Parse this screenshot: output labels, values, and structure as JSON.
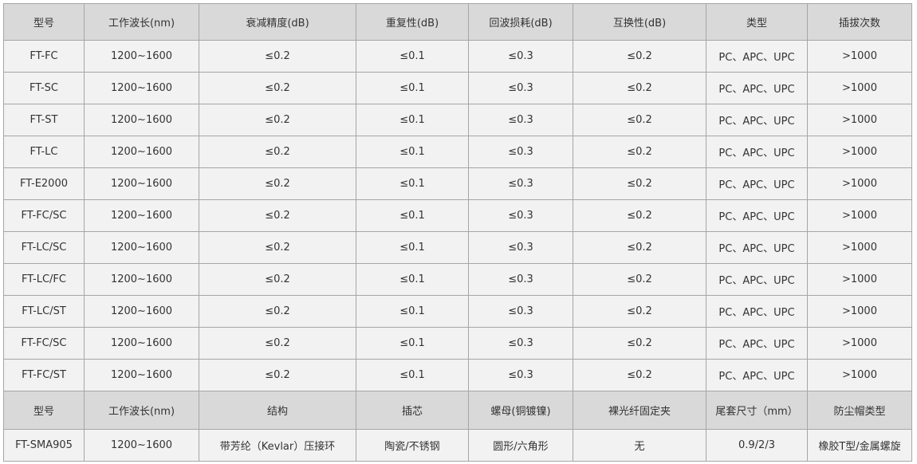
{
  "table": {
    "header": [
      "型号",
      "工作波长(nm)",
      "衰减精度(dB)",
      "重复性(dB)",
      "回波损耗(dB)",
      "互换性(dB)",
      "类型",
      "插拔次数"
    ],
    "rows": [
      [
        "FT-FC",
        "1200~1600",
        "≤0.2",
        "≤0.1",
        "≤0.3",
        "≤0.2",
        "PC、APC、UPC",
        ">1000"
      ],
      [
        "FT-SC",
        "1200~1600",
        "≤0.2",
        "≤0.1",
        "≤0.3",
        "≤0.2",
        "PC、APC、UPC",
        ">1000"
      ],
      [
        "FT-ST",
        "1200~1600",
        "≤0.2",
        "≤0.1",
        "≤0.3",
        "≤0.2",
        "PC、APC、UPC",
        ">1000"
      ],
      [
        "FT-LC",
        "1200~1600",
        "≤0.2",
        "≤0.1",
        "≤0.3",
        "≤0.2",
        "PC、APC、UPC",
        ">1000"
      ],
      [
        "FT-E2000",
        "1200~1600",
        "≤0.2",
        "≤0.1",
        "≤0.3",
        "≤0.2",
        "PC、APC、UPC",
        ">1000"
      ],
      [
        "FT-FC/SC",
        "1200~1600",
        "≤0.2",
        "≤0.1",
        "≤0.3",
        "≤0.2",
        "PC、APC、UPC",
        ">1000"
      ],
      [
        "FT-LC/SC",
        "1200~1600",
        "≤0.2",
        "≤0.1",
        "≤0.3",
        "≤0.2",
        "PC、APC、UPC",
        ">1000"
      ],
      [
        "FT-LC/FC",
        "1200~1600",
        "≤0.2",
        "≤0.1",
        "≤0.3",
        "≤0.2",
        "PC、APC、UPC",
        ">1000"
      ],
      [
        "FT-LC/ST",
        "1200~1600",
        "≤0.2",
        "≤0.1",
        "≤0.3",
        "≤0.2",
        "PC、APC、UPC",
        ">1000"
      ],
      [
        "FT-FC/SC",
        "1200~1600",
        "≤0.2",
        "≤0.1",
        "≤0.3",
        "≤0.2",
        "PC、APC、UPC",
        ">1000"
      ],
      [
        "FT-FC/ST",
        "1200~1600",
        "≤0.2",
        "≤0.1",
        "≤0.3",
        "≤0.2",
        "PC、APC、UPC",
        ">1000"
      ]
    ]
  },
  "table2": {
    "header": [
      "型号",
      "工作波长(nm)",
      "结构",
      "插芯",
      "螺母(铜镀镍)",
      "裸光纤固定夹",
      "尾套尺寸（mm）",
      "防尘帽类型"
    ],
    "rows": [
      [
        "FT-SMA905",
        "1200~1600",
        "带芳纶（Kevlar）压接环",
        "陶瓷/不锈钢",
        "圆形/六角形",
        "无",
        "0.9/2/3",
        "橡胶T型/金属螺旋"
      ]
    ]
  }
}
